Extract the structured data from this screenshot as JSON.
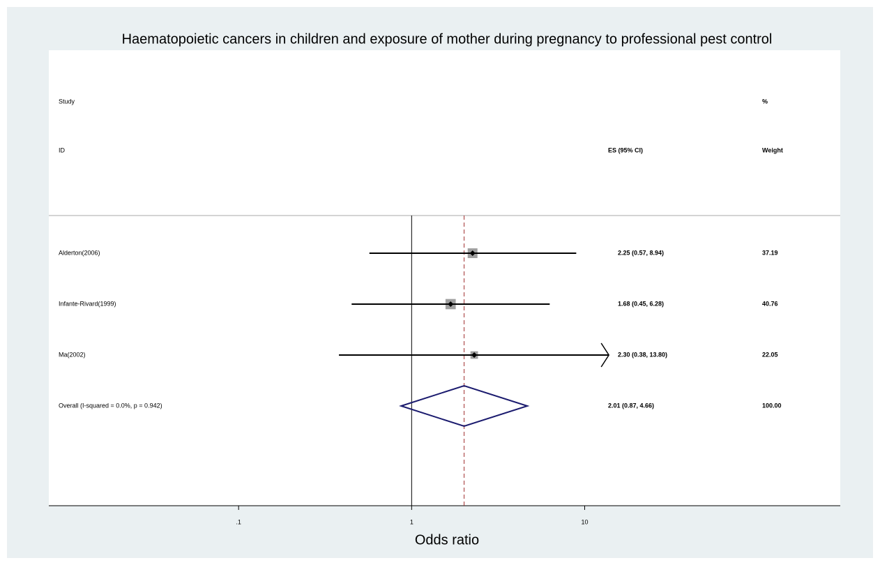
{
  "chart_data": {
    "type": "forest",
    "title": "Haematopoietic cancers in children and exposure of mother during pregnancy to professional pest control",
    "x_label": "Odds ratio",
    "columns": {
      "study": "Study",
      "id": "ID",
      "es": "ES (95% CI)",
      "pct": "%",
      "weight": "Weight"
    },
    "studies": [
      {
        "name": "Alderton(2006)",
        "es": 2.25,
        "ci_low": 0.57,
        "ci_high": 8.94,
        "es_label": "2.25 (0.57, 8.94)",
        "weight": 37.19
      },
      {
        "name": "Infante-Rivard(1999)",
        "es": 1.68,
        "ci_low": 0.45,
        "ci_high": 6.28,
        "es_label": "1.68 (0.45, 6.28)",
        "weight": 40.76
      },
      {
        "name": "Ma(2002)",
        "es": 2.3,
        "ci_low": 0.38,
        "ci_high": 13.8,
        "es_label": "2.30 (0.38, 13.80)",
        "weight": 22.05,
        "arrow": true
      }
    ],
    "overall": {
      "name": "Overall  (I-squared = 0.0%, p = 0.942)",
      "es": 2.01,
      "ci_low": 0.87,
      "ci_high": 4.66,
      "es_label": "2.01 (0.87, 4.66)",
      "weight": 100,
      "weight_label": "100.00"
    },
    "xlim": [
      0.008,
      300
    ],
    "xticks": [
      {
        "value": 0.1,
        "label": ".1"
      },
      1,
      10
    ],
    "log_x": true,
    "null_line": 1,
    "box_color": "#a0a0a0",
    "diamond_color": "#1a1a6e",
    "overall_line_color": "#a03030"
  }
}
